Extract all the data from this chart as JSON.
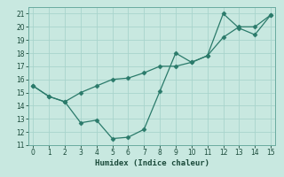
{
  "title": "",
  "xlabel": "Humidex (Indice chaleur)",
  "ylabel": "",
  "bg_color": "#c8e8e0",
  "line1_x": [
    0,
    1,
    2,
    3,
    4,
    5,
    6,
    7,
    8,
    9,
    10,
    11,
    12,
    13,
    14,
    15
  ],
  "line1_y": [
    15.5,
    14.7,
    14.3,
    12.7,
    12.9,
    11.5,
    11.6,
    12.2,
    15.1,
    18.0,
    17.3,
    17.8,
    21.0,
    19.9,
    19.4,
    20.9
  ],
  "line2_x": [
    0,
    1,
    2,
    3,
    4,
    5,
    6,
    7,
    8,
    9,
    10,
    11,
    12,
    13,
    14,
    15
  ],
  "line2_y": [
    15.5,
    14.7,
    14.3,
    15.0,
    15.5,
    16.0,
    16.1,
    16.5,
    17.0,
    17.0,
    17.3,
    17.8,
    19.2,
    20.0,
    20.0,
    20.9
  ],
  "line_color": "#2a7a6a",
  "ylim": [
    11,
    21.5
  ],
  "xlim": [
    -0.3,
    15.3
  ],
  "yticks": [
    11,
    12,
    13,
    14,
    15,
    16,
    17,
    18,
    19,
    20,
    21
  ],
  "xticks": [
    0,
    1,
    2,
    3,
    4,
    5,
    6,
    7,
    8,
    9,
    10,
    11,
    12,
    13,
    14,
    15
  ],
  "grid_color": "#a8d4cc",
  "marker": "D",
  "markersize": 2.5,
  "tick_fontsize": 5.5,
  "xlabel_fontsize": 6.5
}
